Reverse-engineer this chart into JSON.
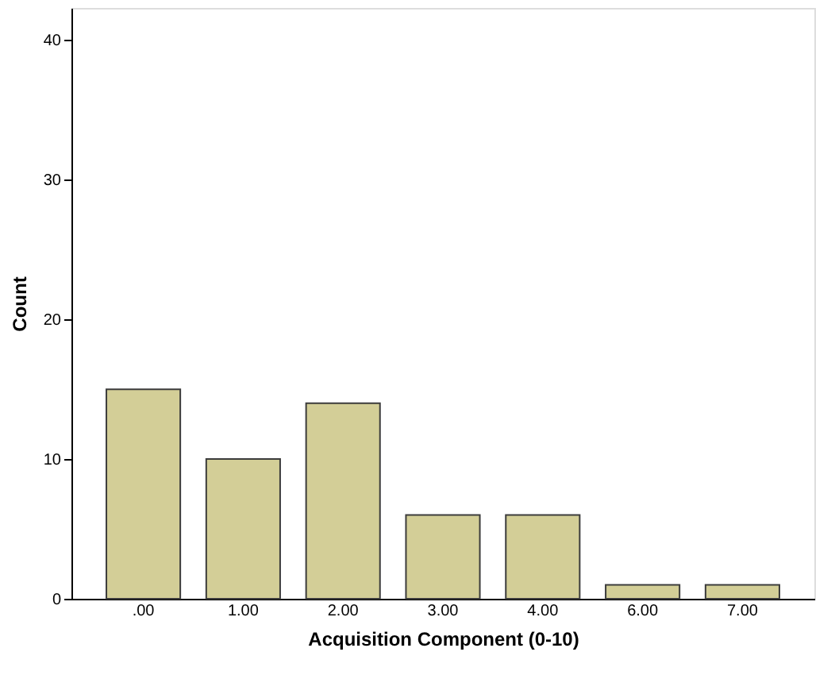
{
  "chart_data": {
    "type": "bar",
    "categories": [
      ".00",
      "1.00",
      "2.00",
      "3.00",
      "4.00",
      "6.00",
      "7.00"
    ],
    "values": [
      15,
      10,
      14,
      6,
      6,
      1,
      1
    ],
    "color": "#d3ce97",
    "xlabel": "Acquisition Component (0-10)",
    "ylabel": "Count",
    "ylim": [
      0,
      42.3
    ],
    "yticks": [
      0,
      10,
      20,
      30,
      40
    ]
  }
}
